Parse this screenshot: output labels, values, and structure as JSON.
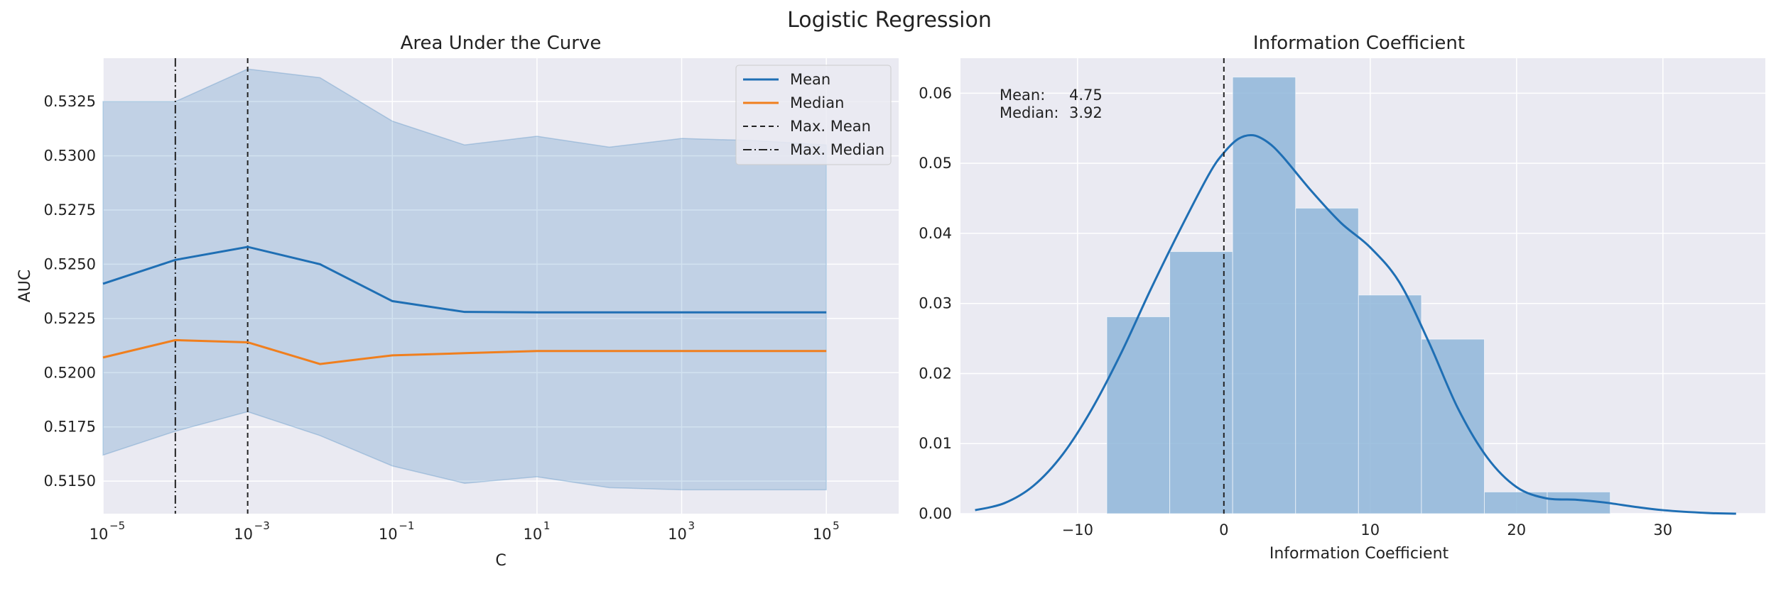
{
  "suptitle": "Logistic Regression",
  "colors": {
    "axes_bg": "#eaeaf2",
    "grid": "#ffffff",
    "mean": "#1f6fb4",
    "median": "#f07f1e",
    "band": "#1f6fb4",
    "hist": "#8fb6d9",
    "kde": "#1f6fb4"
  },
  "chart_data": [
    {
      "type": "line",
      "title": "Area Under the Curve",
      "xlabel": "C",
      "ylabel": "AUC",
      "xscale": "log",
      "xlim": [
        1e-05,
        1000000.0
      ],
      "ylim": [
        0.5135,
        0.5345
      ],
      "xticks": [
        {
          "base": "10",
          "exp": "−5",
          "value": 1e-05
        },
        {
          "base": "10",
          "exp": "−3",
          "value": 0.001
        },
        {
          "base": "10",
          "exp": "−1",
          "value": 0.1
        },
        {
          "base": "10",
          "exp": "1",
          "value": 10.0
        },
        {
          "base": "10",
          "exp": "3",
          "value": 1000.0
        },
        {
          "base": "10",
          "exp": "5",
          "value": 100000.0
        }
      ],
      "yticks": [
        "0.5150",
        "0.5175",
        "0.5200",
        "0.5225",
        "0.5250",
        "0.5275",
        "0.5300",
        "0.5325"
      ],
      "x": [
        1e-05,
        0.0001,
        0.001,
        0.01,
        0.1,
        1,
        10,
        100,
        1000,
        10000,
        100000
      ],
      "series": [
        {
          "name": "Mean",
          "values": [
            0.5241,
            0.5252,
            0.5258,
            0.525,
            0.5233,
            0.5228,
            0.52278,
            0.52278,
            0.52278,
            0.52278,
            0.52278
          ]
        },
        {
          "name": "Median",
          "values": [
            0.5207,
            0.5215,
            0.5214,
            0.5204,
            0.5208,
            0.5209,
            0.521,
            0.521,
            0.521,
            0.521,
            0.521
          ]
        }
      ],
      "band_upper": [
        0.5325,
        0.5325,
        0.534,
        0.5336,
        0.5316,
        0.5305,
        0.5309,
        0.5304,
        0.5308,
        0.5307,
        0.5305
      ],
      "band_lower": [
        0.5162,
        0.5173,
        0.5182,
        0.5171,
        0.5157,
        0.5149,
        0.5152,
        0.5147,
        0.5146,
        0.5146,
        0.5146
      ],
      "vlines": [
        {
          "name": "Max. Mean",
          "x": 0.001,
          "style": "dashed"
        },
        {
          "name": "Max. Median",
          "x": 0.0001,
          "style": "dashdot"
        }
      ],
      "legend": [
        "Mean",
        "Median",
        "Max. Mean",
        "Max. Median"
      ],
      "legend_position": "top-right"
    },
    {
      "type": "bar",
      "title": "Information Coefficient",
      "xlabel": "Information Coefficient",
      "xlim": [
        -18,
        37
      ],
      "ylim": [
        0,
        0.065
      ],
      "xticks": [
        "−10",
        "0",
        "10",
        "20",
        "30"
      ],
      "xtick_values": [
        -10,
        0,
        10,
        20,
        30
      ],
      "yticks": [
        "0.00",
        "0.01",
        "0.02",
        "0.03",
        "0.04",
        "0.05",
        "0.06"
      ],
      "ytick_values": [
        0,
        0.01,
        0.02,
        0.03,
        0.04,
        0.05,
        0.06
      ],
      "bin_edges": [
        -8.0,
        -3.7,
        0.6,
        4.9,
        9.2,
        13.5,
        17.8,
        22.1,
        26.4
      ],
      "bin_heights": [
        0.0281,
        0.0374,
        0.0623,
        0.0436,
        0.0312,
        0.0249,
        0.0031,
        0.0031
      ],
      "kde": {
        "x": [
          -17,
          -15,
          -13,
          -11,
          -9,
          -7,
          -5,
          -3,
          -1,
          0,
          1,
          2,
          3,
          4,
          6,
          8,
          10,
          12,
          14,
          16,
          18,
          20,
          22,
          24,
          26,
          28,
          30,
          33,
          35
        ],
        "y": [
          0.0005,
          0.0015,
          0.004,
          0.0085,
          0.015,
          0.023,
          0.032,
          0.0405,
          0.0485,
          0.0515,
          0.0535,
          0.054,
          0.053,
          0.051,
          0.046,
          0.0415,
          0.038,
          0.033,
          0.0245,
          0.015,
          0.008,
          0.0038,
          0.0022,
          0.002,
          0.0016,
          0.001,
          0.0005,
          0.0001,
          0.0
        ]
      },
      "vline": {
        "x": 0,
        "style": "dashed"
      },
      "stats": [
        {
          "label": "Mean:",
          "value": "4.75"
        },
        {
          "label": "Median:",
          "value": "3.92"
        }
      ]
    }
  ]
}
